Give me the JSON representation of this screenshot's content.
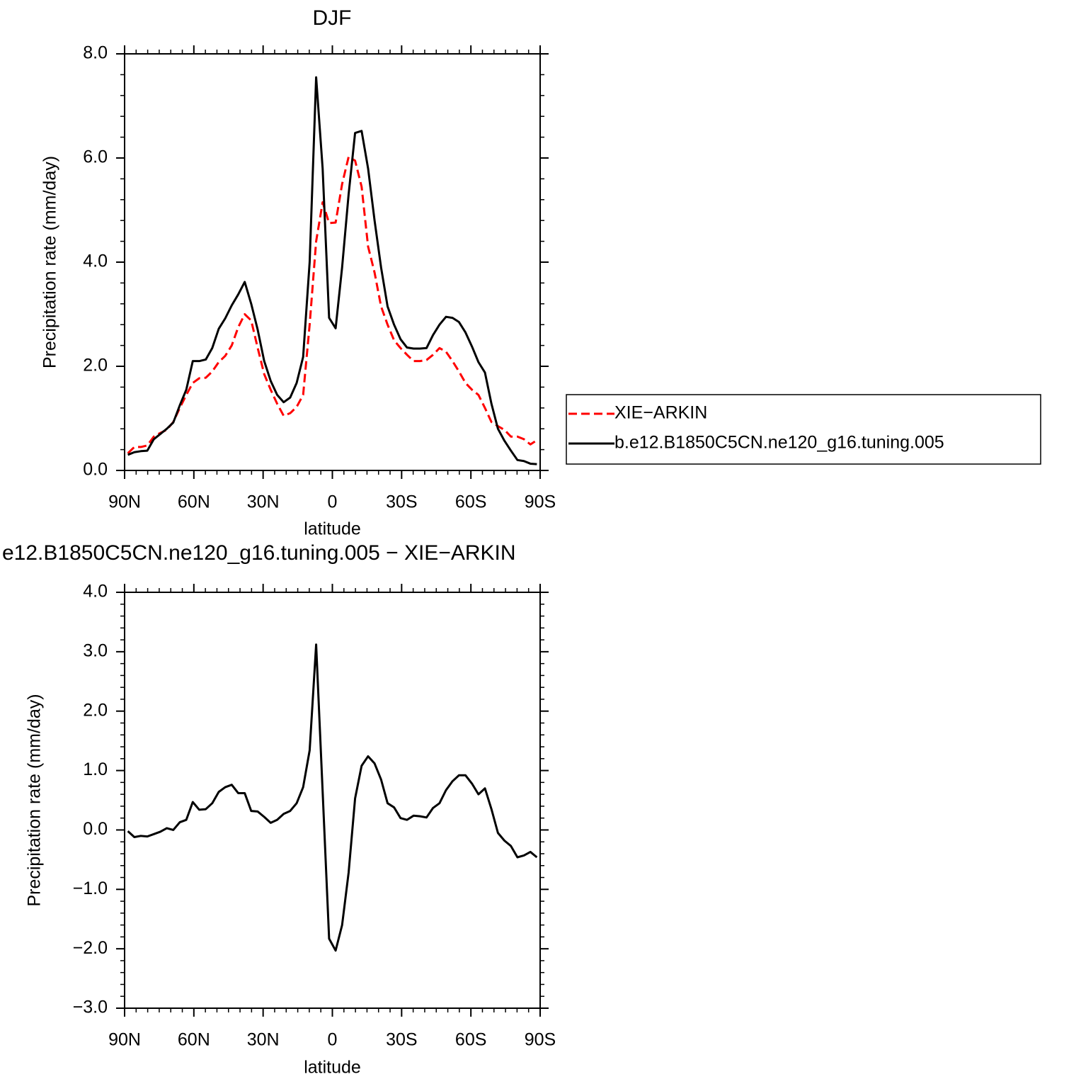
{
  "chart_data": [
    {
      "type": "line",
      "title": "DJF",
      "xlabel": "latitude",
      "ylabel": "Precipitation rate (mm/day)",
      "x": [
        88.59,
        85.78,
        82.97,
        80.16,
        77.34,
        74.53,
        71.72,
        68.91,
        66.09,
        63.28,
        60.47,
        57.66,
        54.84,
        52.03,
        49.22,
        46.41,
        43.59,
        40.78,
        37.97,
        35.16,
        32.34,
        29.53,
        26.72,
        23.91,
        21.09,
        18.28,
        15.47,
        12.66,
        9.84,
        7.03,
        4.22,
        1.41,
        -1.41,
        -4.22,
        -7.03,
        -9.84,
        -12.66,
        -15.47,
        -18.28,
        -21.09,
        -23.91,
        -26.72,
        -29.53,
        -32.34,
        -35.16,
        -37.97,
        -40.78,
        -43.59,
        -46.41,
        -49.22,
        -52.03,
        -54.84,
        -57.66,
        -60.47,
        -63.28,
        -66.09,
        -68.91,
        -71.72,
        -74.53,
        -77.34,
        -80.16,
        -82.97,
        -85.78,
        -88.59
      ],
      "series": [
        {
          "name": "XIE−ARKIN",
          "color": "#ff0000",
          "line_style": "dashed",
          "values": [
            0.33,
            0.45,
            0.45,
            0.48,
            0.65,
            0.72,
            0.78,
            0.93,
            1.2,
            1.45,
            1.68,
            1.77,
            1.78,
            1.9,
            2.08,
            2.2,
            2.4,
            2.75,
            3.0,
            2.88,
            2.35,
            1.85,
            1.55,
            1.28,
            1.05,
            1.1,
            1.22,
            1.45,
            2.8,
            4.4,
            5.15,
            4.75,
            4.76,
            5.5,
            6.02,
            5.95,
            5.45,
            4.3,
            3.8,
            3.15,
            2.8,
            2.5,
            2.35,
            2.22,
            2.1,
            2.1,
            2.12,
            2.22,
            2.35,
            2.28,
            2.1,
            1.9,
            1.68,
            1.55,
            1.45,
            1.2,
            0.93,
            0.85,
            0.78,
            0.65,
            0.65,
            0.6,
            0.5,
            0.58
          ]
        },
        {
          "name": "b.e12.B1850C5CN.ne120_g16.tuning.005",
          "color": "#000000",
          "line_style": "solid",
          "values": [
            0.3,
            0.35,
            0.37,
            0.38,
            0.6,
            0.7,
            0.8,
            0.92,
            1.25,
            1.55,
            2.1,
            2.1,
            2.13,
            2.35,
            2.72,
            2.92,
            3.17,
            3.38,
            3.62,
            3.2,
            2.7,
            2.1,
            1.72,
            1.45,
            1.31,
            1.4,
            1.68,
            2.18,
            4.0,
            7.55,
            5.8,
            2.93,
            2.73,
            3.9,
            5.3,
            6.48,
            6.52,
            5.8,
            4.8,
            3.9,
            3.15,
            2.8,
            2.52,
            2.36,
            2.34,
            2.34,
            2.35,
            2.6,
            2.8,
            2.95,
            2.93,
            2.85,
            2.65,
            2.38,
            2.08,
            1.88,
            1.28,
            0.8,
            0.57,
            0.38,
            0.2,
            0.18,
            0.13,
            0.12
          ]
        }
      ],
      "xlim": [
        90,
        -90
      ],
      "xticks": [
        {
          "value": 90,
          "label": "90N"
        },
        {
          "value": 60,
          "label": "60N"
        },
        {
          "value": 30,
          "label": "30N"
        },
        0,
        {
          "value": -30,
          "label": "30S"
        },
        {
          "value": -60,
          "label": "60S"
        },
        {
          "value": -90,
          "label": "90S"
        }
      ],
      "ylim": [
        0,
        8
      ],
      "yticks": [
        {
          "value": 0,
          "label": "0.0"
        },
        {
          "value": 2,
          "label": "2.0"
        },
        {
          "value": 4,
          "label": "4.0"
        },
        {
          "value": 6,
          "label": "6.0"
        },
        {
          "value": 8,
          "label": "8.0"
        }
      ],
      "legend": "right",
      "grid": false
    },
    {
      "type": "line",
      "title": "e12.B1850C5CN.ne120_g16.tuning.005 − XIE−ARKIN",
      "xlabel": "latitude",
      "ylabel": "Precipitation rate (mm/day)",
      "x": [
        88.59,
        85.78,
        82.97,
        80.16,
        77.34,
        74.53,
        71.72,
        68.91,
        66.09,
        63.28,
        60.47,
        57.66,
        54.84,
        52.03,
        49.22,
        46.41,
        43.59,
        40.78,
        37.97,
        35.16,
        32.34,
        29.53,
        26.72,
        23.91,
        21.09,
        18.28,
        15.47,
        12.66,
        9.84,
        7.03,
        4.22,
        1.41,
        -1.41,
        -4.22,
        -7.03,
        -9.84,
        -12.66,
        -15.47,
        -18.28,
        -21.09,
        -23.91,
        -26.72,
        -29.53,
        -32.34,
        -35.16,
        -37.97,
        -40.78,
        -43.59,
        -46.41,
        -49.22,
        -52.03,
        -54.84,
        -57.66,
        -60.47,
        -63.28,
        -66.09,
        -68.91,
        -71.72,
        -74.53,
        -77.34,
        -80.16,
        -82.97,
        -85.78,
        -88.59
      ],
      "series": [
        {
          "color": "#000000",
          "line_style": "solid",
          "values": [
            -0.02,
            -0.12,
            -0.1,
            -0.11,
            -0.07,
            -0.03,
            0.03,
            0.0,
            0.13,
            0.17,
            0.47,
            0.34,
            0.35,
            0.45,
            0.64,
            0.72,
            0.76,
            0.62,
            0.62,
            0.32,
            0.31,
            0.22,
            0.12,
            0.17,
            0.27,
            0.32,
            0.45,
            0.72,
            1.34,
            3.12,
            0.65,
            -1.83,
            -2.03,
            -1.6,
            -0.72,
            0.53,
            1.08,
            1.24,
            1.12,
            0.85,
            0.45,
            0.38,
            0.2,
            0.17,
            0.24,
            0.23,
            0.21,
            0.37,
            0.45,
            0.67,
            0.82,
            0.92,
            0.92,
            0.78,
            0.6,
            0.7,
            0.35,
            -0.05,
            -0.18,
            -0.27,
            -0.46,
            -0.43,
            -0.37,
            -0.46
          ]
        }
      ],
      "xlim": [
        90,
        -90
      ],
      "xticks": [
        {
          "value": 90,
          "label": "90N"
        },
        {
          "value": 60,
          "label": "60N"
        },
        {
          "value": 30,
          "label": "30N"
        },
        0,
        {
          "value": -30,
          "label": "30S"
        },
        {
          "value": -60,
          "label": "60S"
        },
        {
          "value": -90,
          "label": "90S"
        }
      ],
      "ylim": [
        -3,
        4
      ],
      "yticks": [
        {
          "value": -3,
          "label": "−3.0"
        },
        {
          "value": -2,
          "label": "−2.0"
        },
        {
          "value": -1,
          "label": "−1.0"
        },
        {
          "value": 0,
          "label": "0.0"
        },
        {
          "value": 1,
          "label": "1.0"
        },
        {
          "value": 2,
          "label": "2.0"
        },
        {
          "value": 3,
          "label": "3.0"
        },
        {
          "value": 4,
          "label": "4.0"
        }
      ],
      "grid": false
    }
  ]
}
